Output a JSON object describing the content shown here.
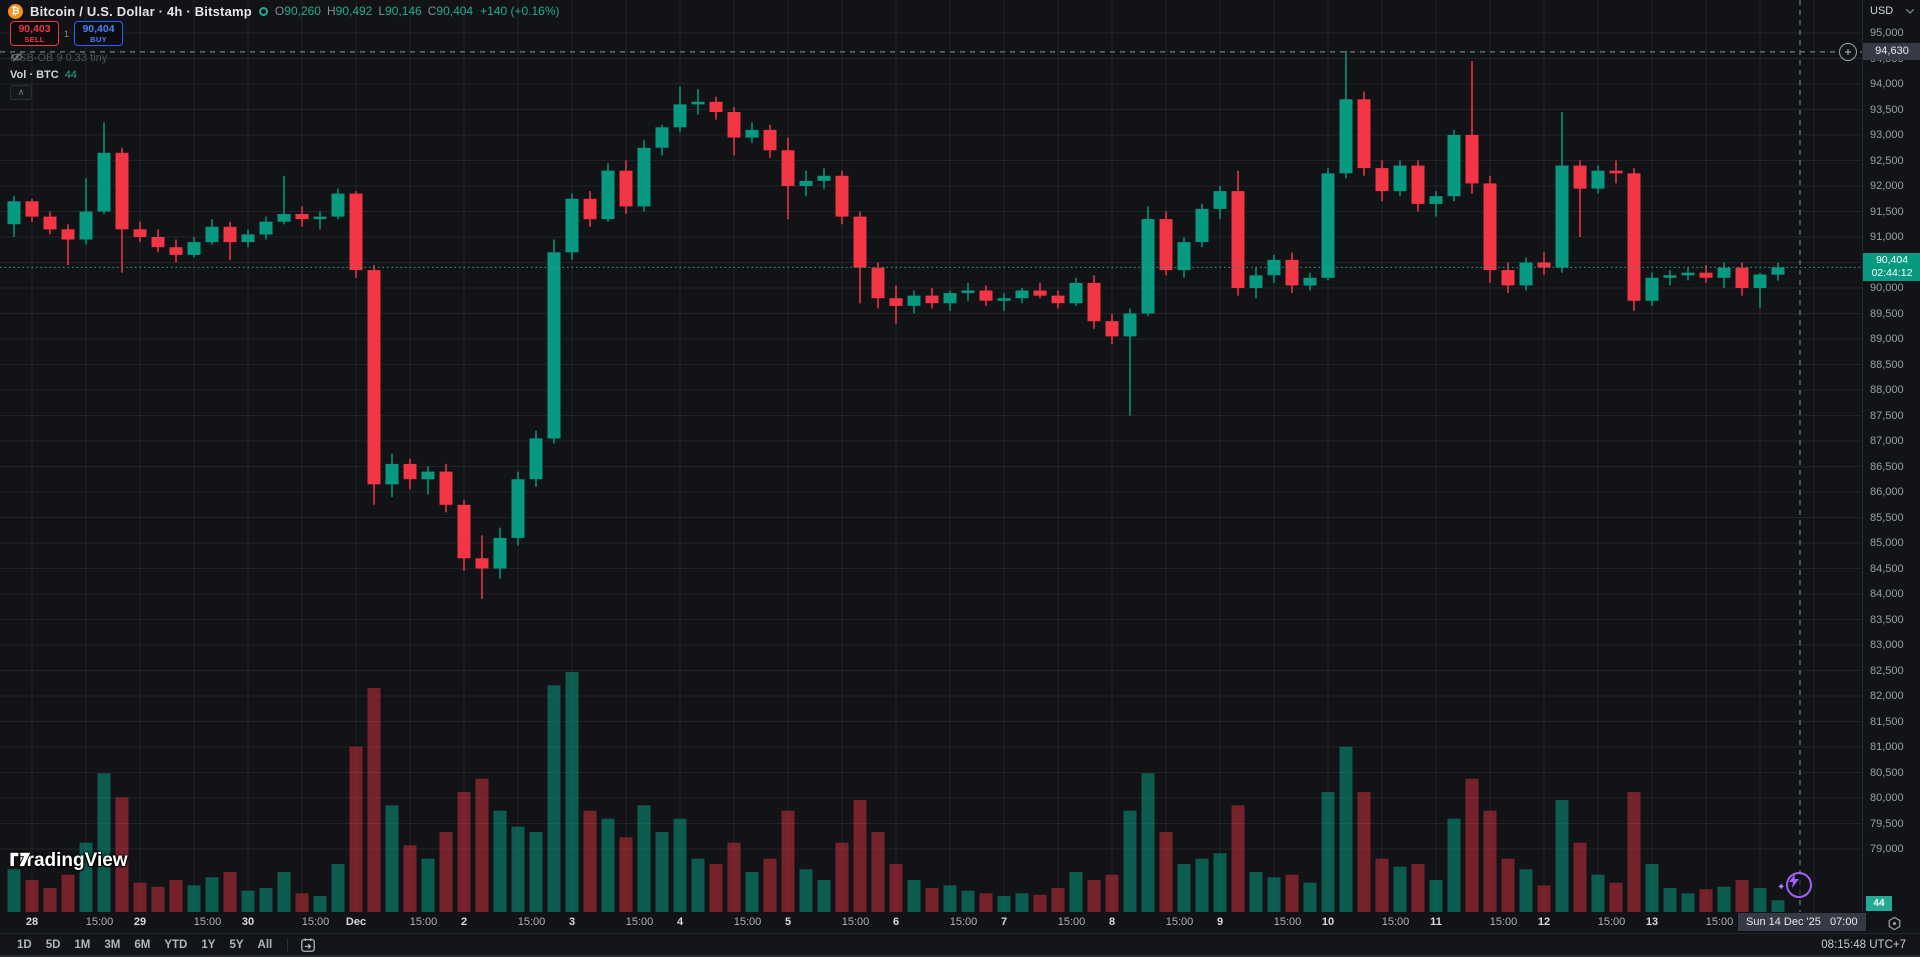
{
  "header": {
    "title": "Bitcoin / U.S. Dollar · 4h · Bitstamp",
    "coin_glyph": "₿",
    "ohlc": [
      {
        "k": "O",
        "v": "90,260"
      },
      {
        "k": "H",
        "v": "90,492"
      },
      {
        "k": "L",
        "v": "90,146"
      },
      {
        "k": "C",
        "v": "90,404"
      }
    ],
    "change": "+140 (+0.16%)"
  },
  "order_panel": {
    "sell_price": "90,403",
    "sell_label": "SELL",
    "spread": "1",
    "buy_price": "90,404",
    "buy_label": "BUY"
  },
  "legend": {
    "indicator_row": "MSB-OB 9 0.33 tiny",
    "volume_title": "Vol · BTC",
    "volume_value": "44",
    "collapse_glyph": "∧"
  },
  "watermark": "TradingView",
  "price_axis": {
    "currency": "USD",
    "crosshair_price": "94,630",
    "current_price": "90,404",
    "countdown": "02:44:12",
    "volume_badge": "44"
  },
  "time_axis": {
    "mid_label": "15:00",
    "crosshair_time": "Sun 14 Dec '25   07:00"
  },
  "toolbar": {
    "ranges": [
      "1D",
      "5D",
      "1M",
      "3M",
      "6M",
      "YTD",
      "1Y",
      "5Y",
      "All"
    ],
    "clock": "08:15:48 UTC+7"
  },
  "colors": {
    "up": "#089981",
    "down": "#f23645",
    "vol_up": "rgba(8,153,129,0.55)",
    "vol_down": "rgba(242,54,69,0.45)",
    "accent_teal": "#22ab94",
    "buy_blue": "#2962ff",
    "sell_red": "#f23645",
    "btc_orange": "#f7931a",
    "crosshair": "#767b87",
    "grid": "rgba(255,255,255,0.07)"
  },
  "chart_data": {
    "type": "candlestick+volume",
    "symbol": "BTCUSD",
    "interval": "4h",
    "exchange": "Bitstamp",
    "price_axis": {
      "min": 79000,
      "max": 95000,
      "step": 500
    },
    "current_price": 90404,
    "crosshair": {
      "price": 94630
    },
    "day_ticks": [
      "28",
      "29",
      "30",
      "Dec",
      "2",
      "3",
      "4",
      "5",
      "6",
      "7",
      "8",
      "9",
      "10",
      "11",
      "12",
      "13"
    ],
    "bars": [
      [
        91250,
        91800,
        91000,
        91700,
        160
      ],
      [
        91700,
        91750,
        91300,
        91400,
        120
      ],
      [
        91400,
        91500,
        91050,
        91150,
        90
      ],
      [
        91150,
        91250,
        90450,
        90950,
        140
      ],
      [
        90950,
        92150,
        90850,
        91500,
        260
      ],
      [
        91500,
        93250,
        91450,
        92650,
        520
      ],
      [
        92650,
        92750,
        90300,
        91150,
        430
      ],
      [
        91150,
        91300,
        90900,
        91000,
        110
      ],
      [
        91000,
        91150,
        90700,
        90800,
        95
      ],
      [
        90800,
        90950,
        90500,
        90650,
        120
      ],
      [
        90650,
        91000,
        90600,
        90900,
        100
      ],
      [
        90900,
        91350,
        90850,
        91200,
        130
      ],
      [
        91200,
        91300,
        90550,
        90900,
        150
      ],
      [
        90900,
        91150,
        90800,
        91050,
        80
      ],
      [
        91050,
        91400,
        90950,
        91300,
        90
      ],
      [
        91300,
        92200,
        91250,
        91450,
        150
      ],
      [
        91450,
        91600,
        91200,
        91350,
        70
      ],
      [
        91350,
        91500,
        91150,
        91400,
        60
      ],
      [
        91400,
        91950,
        91350,
        91850,
        180
      ],
      [
        91850,
        91900,
        90200,
        90350,
        620
      ],
      [
        90350,
        90450,
        85750,
        86150,
        840
      ],
      [
        86150,
        86750,
        85900,
        86550,
        400
      ],
      [
        86550,
        86650,
        86050,
        86250,
        250
      ],
      [
        86250,
        86500,
        85950,
        86400,
        200
      ],
      [
        86400,
        86550,
        85600,
        85750,
        300
      ],
      [
        85750,
        85850,
        84450,
        84700,
        450
      ],
      [
        84700,
        85150,
        83900,
        84500,
        500
      ],
      [
        84500,
        85300,
        84300,
        85100,
        380
      ],
      [
        85100,
        86400,
        84950,
        86250,
        320
      ],
      [
        86250,
        87200,
        86100,
        87050,
        300
      ],
      [
        87050,
        90950,
        86950,
        90700,
        850
      ],
      [
        90700,
        91850,
        90550,
        91750,
        900
      ],
      [
        91750,
        91900,
        91200,
        91350,
        380
      ],
      [
        91350,
        92450,
        91300,
        92300,
        350
      ],
      [
        92300,
        92500,
        91450,
        91600,
        280
      ],
      [
        91600,
        92900,
        91500,
        92750,
        400
      ],
      [
        92750,
        93200,
        92600,
        93150,
        300
      ],
      [
        93150,
        93950,
        93050,
        93600,
        350
      ],
      [
        93600,
        93900,
        93400,
        93650,
        200
      ],
      [
        93650,
        93750,
        93300,
        93450,
        180
      ],
      [
        93450,
        93550,
        92600,
        92950,
        260
      ],
      [
        92950,
        93250,
        92850,
        93100,
        150
      ],
      [
        93100,
        93200,
        92550,
        92700,
        200
      ],
      [
        92700,
        92950,
        91350,
        92000,
        380
      ],
      [
        92000,
        92300,
        91800,
        92100,
        160
      ],
      [
        92100,
        92350,
        91950,
        92200,
        120
      ],
      [
        92200,
        92300,
        91250,
        91400,
        260
      ],
      [
        91400,
        91500,
        89700,
        90400,
        420
      ],
      [
        90400,
        90500,
        89600,
        89800,
        300
      ],
      [
        89800,
        90050,
        89300,
        89650,
        180
      ],
      [
        89650,
        89950,
        89500,
        89850,
        120
      ],
      [
        89850,
        90000,
        89600,
        89700,
        90
      ],
      [
        89700,
        89950,
        89550,
        89900,
        100
      ],
      [
        89900,
        90100,
        89750,
        89950,
        80
      ],
      [
        89950,
        90050,
        89650,
        89750,
        70
      ],
      [
        89750,
        89900,
        89550,
        89800,
        60
      ],
      [
        89800,
        90000,
        89700,
        89950,
        70
      ],
      [
        89950,
        90100,
        89800,
        89850,
        65
      ],
      [
        89850,
        89950,
        89600,
        89700,
        90
      ],
      [
        89700,
        90200,
        89650,
        90100,
        150
      ],
      [
        90100,
        90250,
        89200,
        89350,
        120
      ],
      [
        89350,
        89500,
        88900,
        89050,
        140
      ],
      [
        89050,
        89600,
        87500,
        89500,
        380
      ],
      [
        89500,
        91600,
        89450,
        91350,
        520
      ],
      [
        91350,
        91500,
        90250,
        90350,
        300
      ],
      [
        90350,
        91000,
        90200,
        90900,
        180
      ],
      [
        90900,
        91650,
        90800,
        91550,
        200
      ],
      [
        91550,
        92000,
        91350,
        91900,
        220
      ],
      [
        91900,
        92300,
        89850,
        90000,
        400
      ],
      [
        90000,
        90400,
        89800,
        90250,
        150
      ],
      [
        90250,
        90650,
        90100,
        90550,
        130
      ],
      [
        90550,
        90700,
        89900,
        90050,
        140
      ],
      [
        90050,
        90300,
        89950,
        90200,
        110
      ],
      [
        90200,
        92350,
        90150,
        92250,
        450
      ],
      [
        92250,
        94650,
        92150,
        93700,
        620
      ],
      [
        93700,
        93850,
        92200,
        92350,
        450
      ],
      [
        92350,
        92500,
        91700,
        91900,
        200
      ],
      [
        91900,
        92500,
        91800,
        92400,
        170
      ],
      [
        92400,
        92500,
        91500,
        91650,
        180
      ],
      [
        91650,
        91900,
        91400,
        91800,
        120
      ],
      [
        91800,
        93100,
        91700,
        93000,
        350
      ],
      [
        93000,
        94450,
        91850,
        92050,
        500
      ],
      [
        92050,
        92200,
        90100,
        90350,
        380
      ],
      [
        90350,
        90500,
        89900,
        90050,
        200
      ],
      [
        90050,
        90600,
        89950,
        90500,
        160
      ],
      [
        90500,
        90700,
        90250,
        90400,
        100
      ],
      [
        90400,
        93450,
        90300,
        92400,
        420
      ],
      [
        92400,
        92500,
        91000,
        91950,
        260
      ],
      [
        91950,
        92400,
        91850,
        92300,
        140
      ],
      [
        92300,
        92500,
        92050,
        92250,
        110
      ],
      [
        92250,
        92350,
        89550,
        89750,
        450
      ],
      [
        89750,
        90300,
        89650,
        90200,
        180
      ],
      [
        90200,
        90350,
        90050,
        90250,
        90
      ],
      [
        90250,
        90400,
        90150,
        90300,
        70
      ],
      [
        90300,
        90450,
        90100,
        90200,
        85
      ],
      [
        90200,
        90500,
        90000,
        90400,
        95
      ],
      [
        90400,
        90500,
        89850,
        90000,
        120
      ],
      [
        90000,
        90300,
        89600,
        90264,
        90
      ],
      [
        90260,
        90492,
        90146,
        90404,
        44
      ]
    ]
  }
}
